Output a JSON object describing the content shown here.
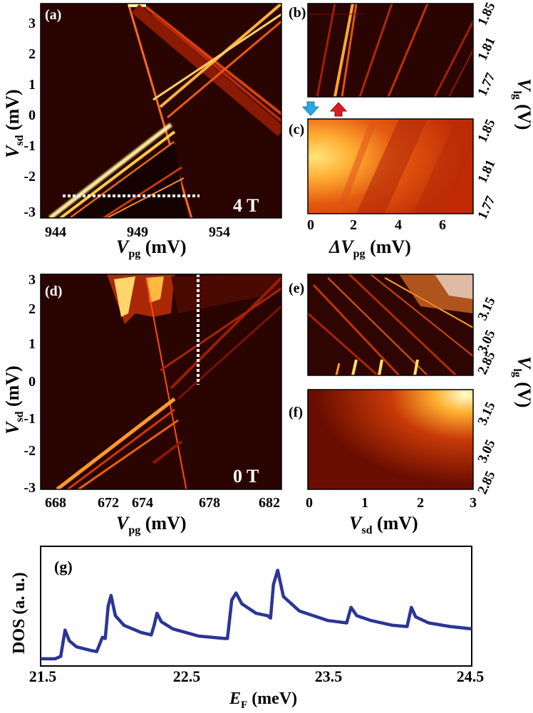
{
  "panels": {
    "a": {
      "tag": "(a)",
      "field": "4 T",
      "xlabel_main": "V",
      "xlabel_sub": "pg",
      "xlabel_unit": " (mV)",
      "ylabel_main": "V",
      "ylabel_sub": "sd",
      "ylabel_unit": " (mV)",
      "xticks": [
        "944",
        "949",
        "954"
      ],
      "yticks": [
        "3",
        "2",
        "1",
        "0",
        "-1",
        "-2",
        "-3"
      ]
    },
    "b": {
      "tag": "(b)",
      "yticks": [
        "1.85",
        "1.81",
        "1.77"
      ]
    },
    "c": {
      "tag": "(c)",
      "xlabel_main": "ΔV",
      "xlabel_sub": "pg",
      "xlabel_unit": " (mV)",
      "xticks": [
        "0",
        "2",
        "4",
        "6"
      ],
      "yticks": [
        "1.85",
        "1.81",
        "1.77"
      ]
    },
    "bc_ylabel": {
      "main": "V",
      "sub": "lg",
      "unit": " (V)"
    },
    "d": {
      "tag": "(d)",
      "field": "0 T",
      "xlabel_main": "V",
      "xlabel_sub": "pg",
      "xlabel_unit": " (mV)",
      "ylabel_main": "V",
      "ylabel_sub": "sd",
      "ylabel_unit": " (mV)",
      "xticks": [
        "668",
        "672",
        "674",
        "678",
        "682"
      ],
      "yticks": [
        "3",
        "2",
        "1",
        "0",
        "-1",
        "-2",
        "-3"
      ]
    },
    "e": {
      "tag": "(e)",
      "yticks": [
        "3.15",
        "3.05",
        "2.85"
      ]
    },
    "f": {
      "tag": "(f)",
      "xlabel_main": "V",
      "xlabel_sub": "sd",
      "xlabel_unit": " (mV)",
      "xticks": [
        "0",
        "1",
        "2",
        "3"
      ],
      "yticks": [
        "3.15",
        "3.05",
        "2.85"
      ]
    },
    "ef_ylabel": {
      "main": "V",
      "sub": "lg",
      "unit": " (V)"
    },
    "g": {
      "tag": "(g)",
      "ylabel": "DOS (a. u.)",
      "xlabel_main": "E",
      "xlabel_sub": "F",
      "xlabel_unit": " (meV)",
      "xticks": [
        "21.5",
        "22.5",
        "23.5",
        "24.5"
      ]
    }
  },
  "colors": {
    "line": "#2b3596",
    "arrow_blue": "#2aa7e0",
    "arrow_red": "#d62020"
  },
  "chart_data": [
    {
      "type": "heatmap",
      "panel": "a",
      "xlabel": "V_pg (mV)",
      "ylabel": "V_sd (mV)",
      "xlim": [
        943.5,
        958
      ],
      "ylim": [
        -3.2,
        3.6
      ],
      "annotation": "4 T"
    },
    {
      "type": "heatmap",
      "panel": "b",
      "ylabel": "V_lg (V)",
      "ylim": [
        1.76,
        1.87
      ]
    },
    {
      "type": "heatmap",
      "panel": "c",
      "xlabel": "ΔV_pg (mV)",
      "ylabel": "V_lg (V)",
      "xlim": [
        0,
        7.5
      ],
      "ylim": [
        1.76,
        1.87
      ]
    },
    {
      "type": "heatmap",
      "panel": "d",
      "xlabel": "V_pg (mV)",
      "ylabel": "V_sd (mV)",
      "xlim": [
        668,
        682
      ],
      "ylim": [
        -3,
        3
      ],
      "annotation": "0 T"
    },
    {
      "type": "heatmap",
      "panel": "e",
      "ylabel": "V_lg (V)",
      "ylim": [
        2.83,
        3.22
      ]
    },
    {
      "type": "heatmap",
      "panel": "f",
      "xlabel": "V_sd (mV)",
      "ylabel": "V_lg (V)",
      "xlim": [
        0,
        3
      ],
      "ylim": [
        2.83,
        3.22
      ]
    },
    {
      "type": "line",
      "panel": "g",
      "xlabel": "E_F (meV)",
      "ylabel": "DOS (a. u.)",
      "xlim": [
        21.5,
        24.5
      ],
      "ylim": [
        0,
        1
      ],
      "series": [
        {
          "values": [
            [
              21.5,
              0.06
            ],
            [
              21.6,
              0.06
            ],
            [
              21.64,
              0.08
            ],
            [
              21.67,
              0.3
            ],
            [
              21.7,
              0.21
            ],
            [
              21.75,
              0.16
            ],
            [
              21.85,
              0.13
            ],
            [
              21.89,
              0.12
            ],
            [
              21.91,
              0.18
            ],
            [
              21.93,
              0.24
            ],
            [
              21.95,
              0.23
            ],
            [
              21.97,
              0.5
            ],
            [
              21.99,
              0.59
            ],
            [
              22.02,
              0.42
            ],
            [
              22.08,
              0.34
            ],
            [
              22.2,
              0.28
            ],
            [
              22.27,
              0.26
            ],
            [
              22.29,
              0.34
            ],
            [
              22.31,
              0.44
            ],
            [
              22.34,
              0.37
            ],
            [
              22.42,
              0.31
            ],
            [
              22.6,
              0.25
            ],
            [
              22.78,
              0.23
            ],
            [
              22.8,
              0.23
            ],
            [
              22.83,
              0.55
            ],
            [
              22.86,
              0.61
            ],
            [
              22.9,
              0.52
            ],
            [
              23.0,
              0.44
            ],
            [
              23.08,
              0.42
            ],
            [
              23.1,
              0.4
            ],
            [
              23.12,
              0.68
            ],
            [
              23.15,
              0.8
            ],
            [
              23.19,
              0.58
            ],
            [
              23.3,
              0.46
            ],
            [
              23.5,
              0.38
            ],
            [
              23.63,
              0.36
            ],
            [
              23.66,
              0.49
            ],
            [
              23.7,
              0.42
            ],
            [
              23.8,
              0.38
            ],
            [
              23.95,
              0.34
            ],
            [
              24.05,
              0.33
            ],
            [
              24.08,
              0.49
            ],
            [
              24.11,
              0.41
            ],
            [
              24.2,
              0.36
            ],
            [
              24.35,
              0.33
            ],
            [
              24.5,
              0.31
            ]
          ]
        }
      ]
    }
  ]
}
